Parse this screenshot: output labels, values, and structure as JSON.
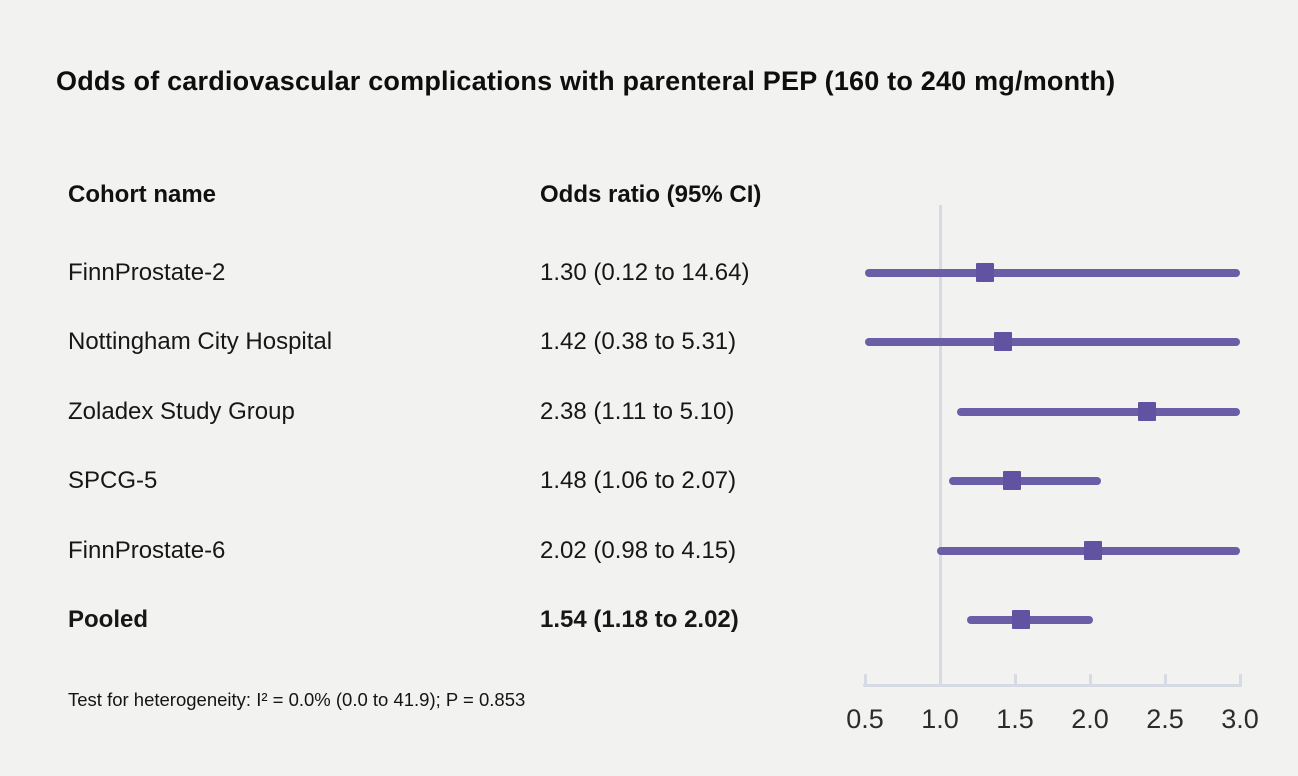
{
  "title": "Odds of cardiovascular complications with parenteral PEP (160 to 240 mg/month)",
  "columns": {
    "cohort": "Cohort name",
    "odds_ratio": "Odds ratio (95% CI)"
  },
  "footnote": "Test for heterogeneity: I² = 0.0% (0.0 to 41.9); P = 0.853",
  "colors": {
    "background": "#f2f2f1",
    "ci_line": "#6c5da7",
    "marker": "#6253a2",
    "axis": "#d5dae3",
    "text": "#141414"
  },
  "chart_data": {
    "type": "forest",
    "title": "Odds of cardiovascular complications with parenteral PEP (160 to 240 mg/month)",
    "xlabel": "Odds ratio",
    "scale": "linear",
    "xlim": [
      0.5,
      3.0
    ],
    "reference_line": 1.0,
    "tick_values": [
      0.5,
      1.0,
      1.5,
      2.0,
      2.5,
      3.0
    ],
    "tick_labels": [
      "0.5",
      "1.0",
      "1.5",
      "2.0",
      "2.5",
      "3.0"
    ],
    "rows": [
      {
        "cohort": "FinnProstate-2",
        "label": "1.30 (0.12 to 14.64)",
        "or": 1.3,
        "ci_low": 0.12,
        "ci_high": 14.64,
        "bold": false
      },
      {
        "cohort": "Nottingham City Hospital",
        "label": "1.42 (0.38 to 5.31)",
        "or": 1.42,
        "ci_low": 0.38,
        "ci_high": 5.31,
        "bold": false
      },
      {
        "cohort": "Zoladex Study Group",
        "label": "2.38 (1.11 to 5.10)",
        "or": 2.38,
        "ci_low": 1.11,
        "ci_high": 5.1,
        "bold": false
      },
      {
        "cohort": "SPCG-5",
        "label": "1.48 (1.06 to 2.07)",
        "or": 1.48,
        "ci_low": 1.06,
        "ci_high": 2.07,
        "bold": false
      },
      {
        "cohort": "FinnProstate-6",
        "label": "2.02 (0.98 to 4.15)",
        "or": 2.02,
        "ci_low": 0.98,
        "ci_high": 4.15,
        "bold": false
      },
      {
        "cohort": "Pooled",
        "label": "1.54 (1.18 to 2.02)",
        "or": 1.54,
        "ci_low": 1.18,
        "ci_high": 2.02,
        "bold": true
      }
    ]
  }
}
